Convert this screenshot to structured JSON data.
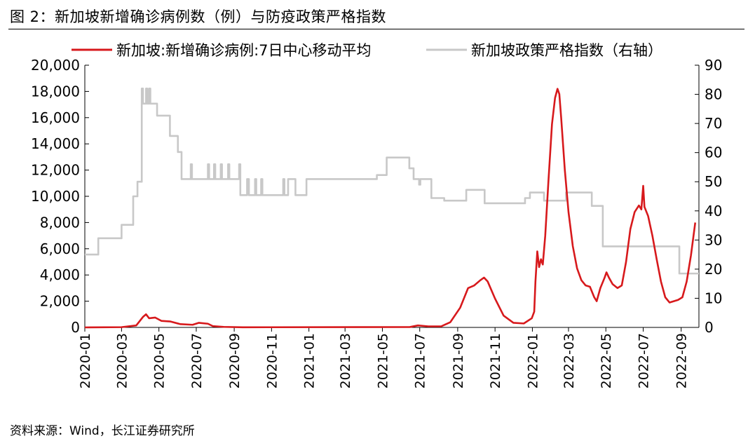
{
  "title": "图 2：新加坡新增确诊病例数（例）与防疫政策严格指数",
  "source": "资料来源：Wind，长江证券研究所",
  "chart_data": {
    "type": "line",
    "x_range": [
      "2020-01-01",
      "2022-09-30"
    ],
    "x_ticks": [
      "2020-01",
      "2020-03",
      "2020-05",
      "2020-07",
      "2020-09",
      "2020-11",
      "2021-01",
      "2021-03",
      "2021-05",
      "2021-07",
      "2021-09",
      "2021-11",
      "2022-01",
      "2022-03",
      "2022-05",
      "2022-07",
      "2022-09"
    ],
    "y_left": {
      "min": 0,
      "max": 20000,
      "ticks": [
        "0",
        "2,000",
        "4,000",
        "6,000",
        "8,000",
        "10,000",
        "12,000",
        "14,000",
        "16,000",
        "18,000",
        "20,000"
      ]
    },
    "y_right": {
      "min": 0,
      "max": 90,
      "ticks": [
        "0",
        "10",
        "20",
        "30",
        "40",
        "50",
        "60",
        "70",
        "80",
        "90"
      ]
    },
    "grid": false,
    "legend_position": "top",
    "series": [
      {
        "name": "新加坡:新增确诊病例:7日中心移动平均",
        "axis": "left",
        "color": "#d7191c",
        "points": [
          [
            "2020-01-01",
            0
          ],
          [
            "2020-03-01",
            20
          ],
          [
            "2020-03-25",
            150
          ],
          [
            "2020-04-05",
            800
          ],
          [
            "2020-04-10",
            1000
          ],
          [
            "2020-04-15",
            700
          ],
          [
            "2020-04-25",
            750
          ],
          [
            "2020-05-05",
            500
          ],
          [
            "2020-05-20",
            450
          ],
          [
            "2020-06-05",
            250
          ],
          [
            "2020-06-25",
            200
          ],
          [
            "2020-07-05",
            350
          ],
          [
            "2020-07-20",
            280
          ],
          [
            "2020-07-28",
            100
          ],
          [
            "2020-08-15",
            40
          ],
          [
            "2020-09-15",
            10
          ],
          [
            "2021-06-15",
            30
          ],
          [
            "2021-06-28",
            150
          ],
          [
            "2021-07-15",
            80
          ],
          [
            "2021-08-05",
            80
          ],
          [
            "2021-08-20",
            400
          ],
          [
            "2021-09-05",
            1500
          ],
          [
            "2021-09-18",
            3000
          ],
          [
            "2021-09-28",
            3200
          ],
          [
            "2021-10-08",
            3600
          ],
          [
            "2021-10-14",
            3800
          ],
          [
            "2021-10-20",
            3500
          ],
          [
            "2021-11-01",
            2200
          ],
          [
            "2021-11-15",
            900
          ],
          [
            "2021-12-01",
            350
          ],
          [
            "2021-12-18",
            300
          ],
          [
            "2021-12-31",
            700
          ],
          [
            "2022-01-04",
            1200
          ],
          [
            "2022-01-06",
            3500
          ],
          [
            "2022-01-09",
            5800
          ],
          [
            "2022-01-12",
            4600
          ],
          [
            "2022-01-15",
            5200
          ],
          [
            "2022-01-18",
            4800
          ],
          [
            "2022-01-22",
            7000
          ],
          [
            "2022-01-27",
            11000
          ],
          [
            "2022-02-02",
            15500
          ],
          [
            "2022-02-07",
            17500
          ],
          [
            "2022-02-11",
            18200
          ],
          [
            "2022-02-14",
            17800
          ],
          [
            "2022-02-17",
            16000
          ],
          [
            "2022-02-23",
            12000
          ],
          [
            "2022-03-01",
            8800
          ],
          [
            "2022-03-08",
            6200
          ],
          [
            "2022-03-15",
            4500
          ],
          [
            "2022-03-22",
            3600
          ],
          [
            "2022-03-29",
            3200
          ],
          [
            "2022-04-05",
            3100
          ],
          [
            "2022-04-12",
            2300
          ],
          [
            "2022-04-16",
            2000
          ],
          [
            "2022-04-22",
            3000
          ],
          [
            "2022-04-29",
            3800
          ],
          [
            "2022-05-02",
            4200
          ],
          [
            "2022-05-06",
            3800
          ],
          [
            "2022-05-12",
            3300
          ],
          [
            "2022-05-20",
            3000
          ],
          [
            "2022-05-27",
            3200
          ],
          [
            "2022-06-03",
            5000
          ],
          [
            "2022-06-10",
            7500
          ],
          [
            "2022-06-17",
            8800
          ],
          [
            "2022-06-24",
            9300
          ],
          [
            "2022-06-28",
            9000
          ],
          [
            "2022-07-01",
            10800
          ],
          [
            "2022-07-03",
            9200
          ],
          [
            "2022-07-09",
            8500
          ],
          [
            "2022-07-16",
            7000
          ],
          [
            "2022-07-23",
            5200
          ],
          [
            "2022-07-30",
            3500
          ],
          [
            "2022-08-06",
            2300
          ],
          [
            "2022-08-13",
            1900
          ],
          [
            "2022-08-20",
            2000
          ],
          [
            "2022-08-27",
            2100
          ],
          [
            "2022-09-03",
            2300
          ],
          [
            "2022-09-10",
            3500
          ],
          [
            "2022-09-17",
            5500
          ],
          [
            "2022-09-24",
            8000
          ]
        ]
      },
      {
        "name": "新加坡政策严格指数（右轴）",
        "axis": "right",
        "color": "#c8c8c8",
        "points": [
          [
            "2020-01-01",
            25
          ],
          [
            "2020-01-23",
            25
          ],
          [
            "2020-01-23",
            30.6
          ],
          [
            "2020-03-01",
            30.6
          ],
          [
            "2020-03-01",
            35.2
          ],
          [
            "2020-03-20",
            35.2
          ],
          [
            "2020-03-20",
            45
          ],
          [
            "2020-03-27",
            45
          ],
          [
            "2020-03-27",
            50
          ],
          [
            "2020-04-03",
            50
          ],
          [
            "2020-04-03",
            82
          ],
          [
            "2020-04-05",
            82
          ],
          [
            "2020-04-05",
            76.8
          ],
          [
            "2020-04-10",
            76.8
          ],
          [
            "2020-04-10",
            82
          ],
          [
            "2020-04-12",
            82
          ],
          [
            "2020-04-12",
            76.8
          ],
          [
            "2020-04-15",
            76.8
          ],
          [
            "2020-04-15",
            82
          ],
          [
            "2020-04-17",
            82
          ],
          [
            "2020-04-17",
            76.8
          ],
          [
            "2020-04-28",
            76.8
          ],
          [
            "2020-04-28",
            72.7
          ],
          [
            "2020-05-19",
            72.7
          ],
          [
            "2020-05-19",
            65.7
          ],
          [
            "2020-06-01",
            65.7
          ],
          [
            "2020-06-01",
            60.2
          ],
          [
            "2020-06-07",
            60.2
          ],
          [
            "2020-06-07",
            50.9
          ],
          [
            "2020-06-22",
            50.9
          ],
          [
            "2020-06-22",
            56
          ],
          [
            "2020-06-24",
            56
          ],
          [
            "2020-06-24",
            50.9
          ],
          [
            "2020-07-20",
            50.9
          ],
          [
            "2020-07-20",
            56
          ],
          [
            "2020-07-22",
            56
          ],
          [
            "2020-07-22",
            50.9
          ],
          [
            "2020-07-30",
            50.9
          ],
          [
            "2020-07-30",
            56
          ],
          [
            "2020-08-01",
            56
          ],
          [
            "2020-08-01",
            50.9
          ],
          [
            "2020-08-10",
            50.9
          ],
          [
            "2020-08-10",
            56
          ],
          [
            "2020-08-12",
            56
          ],
          [
            "2020-08-12",
            50.9
          ],
          [
            "2020-08-22",
            50.9
          ],
          [
            "2020-08-22",
            56
          ],
          [
            "2020-08-24",
            56
          ],
          [
            "2020-08-24",
            50.9
          ],
          [
            "2020-09-09",
            50.9
          ],
          [
            "2020-09-09",
            56
          ],
          [
            "2020-09-11",
            56
          ],
          [
            "2020-09-11",
            45.4
          ],
          [
            "2020-09-22",
            45.4
          ],
          [
            "2020-09-22",
            50.9
          ],
          [
            "2020-09-25",
            50.9
          ],
          [
            "2020-09-25",
            45.4
          ],
          [
            "2020-10-05",
            45.4
          ],
          [
            "2020-10-05",
            50.9
          ],
          [
            "2020-10-07",
            50.9
          ],
          [
            "2020-10-07",
            45.4
          ],
          [
            "2020-10-15",
            45.4
          ],
          [
            "2020-10-15",
            50.9
          ],
          [
            "2020-10-17",
            50.9
          ],
          [
            "2020-10-17",
            45.4
          ],
          [
            "2020-11-20",
            45.4
          ],
          [
            "2020-11-20",
            50.9
          ],
          [
            "2020-11-22",
            50.9
          ],
          [
            "2020-11-22",
            45.4
          ],
          [
            "2020-11-28",
            45.4
          ],
          [
            "2020-11-28",
            50.9
          ],
          [
            "2020-12-10",
            50.9
          ],
          [
            "2020-12-10",
            45.4
          ],
          [
            "2020-12-28",
            45.4
          ],
          [
            "2020-12-28",
            50.9
          ],
          [
            "2021-04-22",
            50.9
          ],
          [
            "2021-04-22",
            52.3
          ],
          [
            "2021-05-08",
            52.3
          ],
          [
            "2021-05-08",
            58.3
          ],
          [
            "2021-06-14",
            58.3
          ],
          [
            "2021-06-14",
            54.6
          ],
          [
            "2021-06-21",
            54.6
          ],
          [
            "2021-06-21",
            50.9
          ],
          [
            "2021-06-30",
            50.9
          ],
          [
            "2021-06-30",
            49
          ],
          [
            "2021-07-02",
            49
          ],
          [
            "2021-07-02",
            50.9
          ],
          [
            "2021-07-20",
            50.9
          ],
          [
            "2021-07-20",
            44.4
          ],
          [
            "2021-08-10",
            44.4
          ],
          [
            "2021-08-10",
            43.5
          ],
          [
            "2021-09-15",
            43.5
          ],
          [
            "2021-09-15",
            47.2
          ],
          [
            "2021-10-15",
            47.2
          ],
          [
            "2021-10-15",
            42.6
          ],
          [
            "2021-12-20",
            42.6
          ],
          [
            "2021-12-20",
            44.4
          ],
          [
            "2021-12-28",
            44.4
          ],
          [
            "2021-12-28",
            46.3
          ],
          [
            "2022-01-20",
            46.3
          ],
          [
            "2022-01-20",
            43.5
          ],
          [
            "2022-02-25",
            43.5
          ],
          [
            "2022-02-25",
            46.3
          ],
          [
            "2022-04-08",
            46.3
          ],
          [
            "2022-04-08",
            41.7
          ],
          [
            "2022-04-26",
            41.7
          ],
          [
            "2022-04-26",
            27.8
          ],
          [
            "2022-08-29",
            27.8
          ],
          [
            "2022-08-29",
            18.5
          ],
          [
            "2022-09-30",
            18.5
          ]
        ]
      }
    ]
  }
}
